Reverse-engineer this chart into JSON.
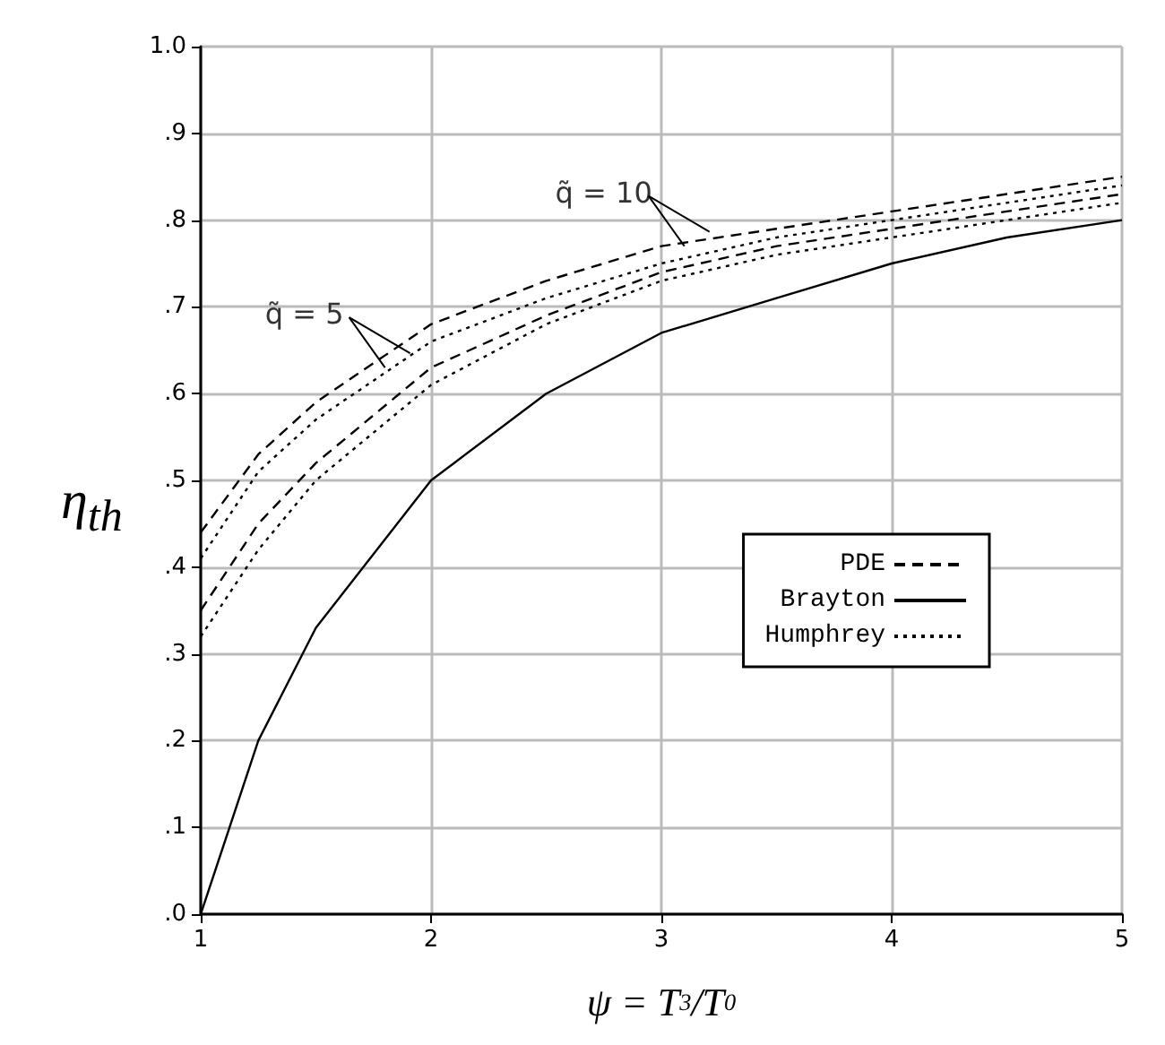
{
  "chart_data": {
    "type": "line",
    "xlabel": "ψ = T$_{3}$/T$_{0}$",
    "ylabel": "η$_{th}$",
    "x": [
      1,
      1.25,
      1.5,
      2,
      2.5,
      3,
      3.5,
      4,
      4.5,
      5
    ],
    "series": [
      {
        "name": "PDE",
        "color": "#000000",
        "line_style": "dashed",
        "values": [
          0.44,
          0.53,
          0.59,
          0.68,
          0.73,
          0.77,
          0.79,
          0.81,
          0.83,
          0.85
        ]
      },
      {
        "name": "Brayton",
        "color": "#000000",
        "line_style": "solid",
        "values": [
          0,
          0.2,
          0.33,
          0.5,
          0.6,
          0.67,
          0.71,
          0.75,
          0.78,
          0.8
        ]
      },
      {
        "name": "Humphrey",
        "color": "#000000",
        "line_style": "dotted",
        "values": [
          0.41,
          0.51,
          0.57,
          0.66,
          0.71,
          0.75,
          0.78,
          0.8,
          0.82,
          0.84
        ]
      },
      {
        "color": "#000000",
        "line_style": "dashed",
        "values": [
          0.35,
          0.45,
          0.52,
          0.63,
          0.69,
          0.74,
          0.77,
          0.79,
          0.81,
          0.83
        ]
      },
      {
        "color": "#000000",
        "line_style": "dotted",
        "values": [
          0.32,
          0.42,
          0.5,
          0.61,
          0.68,
          0.73,
          0.76,
          0.78,
          0.8,
          0.82
        ]
      }
    ],
    "xlim": [
      1,
      5
    ],
    "xticks": [
      1,
      2,
      3,
      4,
      5
    ],
    "ylim": [
      0,
      1
    ],
    "yticks": [
      {
        "value": 0,
        "label": ".0"
      },
      {
        "value": 0.1,
        "label": ".1"
      },
      {
        "value": 0.2,
        "label": ".2"
      },
      {
        "value": 0.3,
        "label": ".3"
      },
      {
        "value": 0.4,
        "label": ".4"
      },
      {
        "value": 0.5,
        "label": ".5"
      },
      {
        "value": 0.6,
        "label": ".6"
      },
      {
        "value": 0.7,
        "label": ".7"
      },
      {
        "value": 0.8,
        "label": ".8"
      },
      {
        "value": 0.9,
        "label": ".9"
      },
      {
        "value": 1,
        "label": "1.0"
      }
    ],
    "annotations": [
      {
        "text": "q̃ = 10",
        "x": 3.1,
        "y": 0.77
      },
      {
        "text": "q̃ = 5",
        "x": 1.8,
        "y": 0.63
      }
    ],
    "grid": true,
    "legend": "right",
    "marker": "none"
  }
}
